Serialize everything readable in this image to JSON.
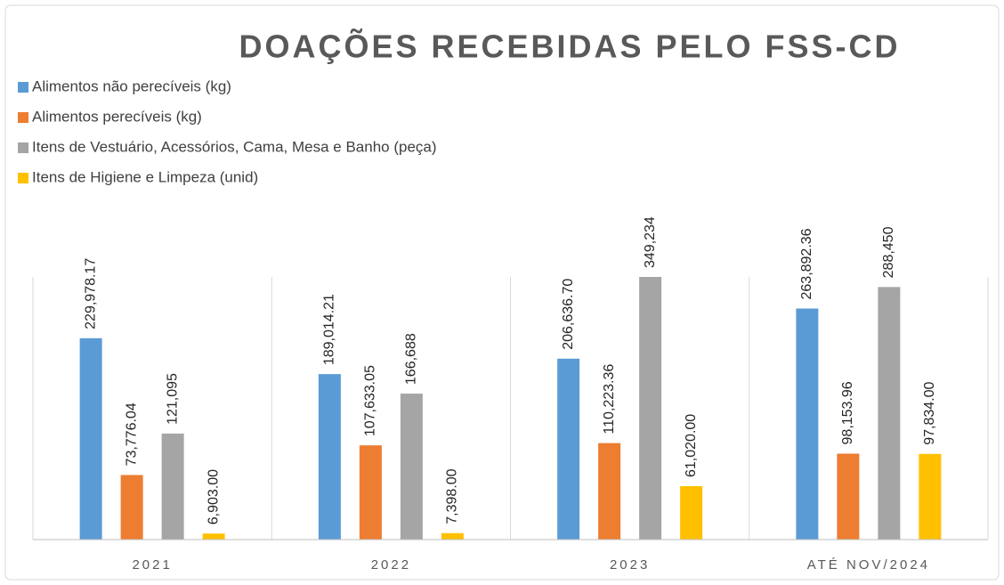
{
  "chart_data": {
    "type": "bar",
    "title": "DOAÇÕES RECEBIDAS PELO FSS-CD",
    "categories": [
      "2021",
      "2022",
      "2023",
      "ATÉ NOV/2024"
    ],
    "ylim": [
      0,
      300000
    ],
    "series": [
      {
        "name": "Alimentos não perecíveis (kg)",
        "color": "#5b9bd5",
        "values": [
          229978.17,
          189014.21,
          206636.7,
          263892.36
        ],
        "value_labels": [
          "229,978.17",
          "189,014.21",
          "206,636.70",
          "263,892.36"
        ]
      },
      {
        "name": "Alimentos perecíveis (kg)",
        "color": "#ed7d31",
        "values": [
          73776.04,
          107633.05,
          110223.36,
          98153.96
        ],
        "value_labels": [
          "73,776.04",
          "107,633.05",
          "110,223.36",
          "98,153.96"
        ]
      },
      {
        "name": "Itens de Vestuário, Acessórios, Cama, Mesa e Banho (peça)",
        "color": "#a5a5a5",
        "values": [
          121095,
          166688,
          349234,
          288450
        ],
        "value_labels": [
          "121,095",
          "166,688",
          "349,234",
          "288,450"
        ]
      },
      {
        "name": "Itens de Higiene e Limpeza (unid)",
        "color": "#ffc000",
        "values": [
          6903.0,
          7398.0,
          61020.0,
          97834.0
        ],
        "value_labels": [
          "6,903.00",
          "7,398.00",
          "61,020.00",
          "97,834.00"
        ]
      }
    ]
  }
}
